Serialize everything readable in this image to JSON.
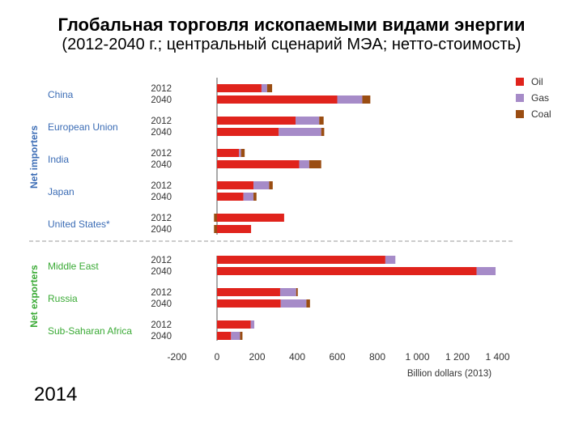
{
  "header": {
    "title": "Глобальная торговля ископаемыми видами энергии",
    "subtitle": "(2012-2040 г.; центральный сценарий МЭА; нетто-стоимость)"
  },
  "footer": {
    "year": "2014"
  },
  "colors": {
    "oil": "#e0231c",
    "gas": "#a68bc8",
    "coal": "#9a4d12",
    "importers": "#3b6cb5",
    "exporters": "#3aaa35",
    "axis": "#555555"
  },
  "chart_data": {
    "type": "bar",
    "orientation": "horizontal",
    "stacked": true,
    "xlabel": "Billion dollars (2013)",
    "xlim": [
      -200,
      1400
    ],
    "xticks": [
      -200,
      0,
      200,
      400,
      600,
      800,
      1000,
      1200,
      1400
    ],
    "xtick_labels": [
      "-200",
      "0",
      "200",
      "400",
      "600",
      "800",
      "1 000",
      "1 200",
      "1 400"
    ],
    "legend": [
      "Oil",
      "Gas",
      "Coal"
    ],
    "legend_position": "top-right",
    "groups": [
      {
        "name": "Net importers",
        "regions": [
          {
            "name": "China",
            "rows": [
              {
                "year": "2012",
                "oil": 222,
                "gas": 28,
                "coal": 25
              },
              {
                "year": "2040",
                "oil": 600,
                "gas": 125,
                "coal": 40
              }
            ]
          },
          {
            "name": "European Union",
            "rows": [
              {
                "year": "2012",
                "oil": 392,
                "gas": 118,
                "coal": 22
              },
              {
                "year": "2040",
                "oil": 308,
                "gas": 212,
                "coal": 15
              }
            ]
          },
          {
            "name": "India",
            "rows": [
              {
                "year": "2012",
                "oil": 110,
                "gas": 10,
                "coal": 18
              },
              {
                "year": "2040",
                "oil": 410,
                "gas": 50,
                "coal": 60
              }
            ]
          },
          {
            "name": "Japan",
            "rows": [
              {
                "year": "2012",
                "oil": 182,
                "gas": 78,
                "coal": 18
              },
              {
                "year": "2040",
                "oil": 132,
                "gas": 50,
                "coal": 15
              }
            ]
          },
          {
            "name": "United States*",
            "rows": [
              {
                "year": "2012",
                "oil": 335,
                "gas": 0,
                "coal": -15
              },
              {
                "year": "2040",
                "oil": 170,
                "gas": 0,
                "coal": -15
              }
            ]
          }
        ]
      },
      {
        "name": "Net exporters",
        "regions": [
          {
            "name": "Middle East",
            "rows": [
              {
                "year": "2012",
                "oil": 840,
                "gas": 50,
                "coal": 0
              },
              {
                "year": "2040",
                "oil": 1295,
                "gas": 95,
                "coal": 0
              }
            ]
          },
          {
            "name": "Russia",
            "rows": [
              {
                "year": "2012",
                "oil": 315,
                "gas": 80,
                "coal": 8
              },
              {
                "year": "2040",
                "oil": 318,
                "gas": 128,
                "coal": 18
              }
            ]
          },
          {
            "name": "Sub-Saharan Africa",
            "rows": [
              {
                "year": "2012",
                "oil": 168,
                "gas": 18,
                "coal": 0
              },
              {
                "year": "2040",
                "oil": 70,
                "gas": 45,
                "coal": 12
              }
            ]
          }
        ]
      }
    ]
  }
}
